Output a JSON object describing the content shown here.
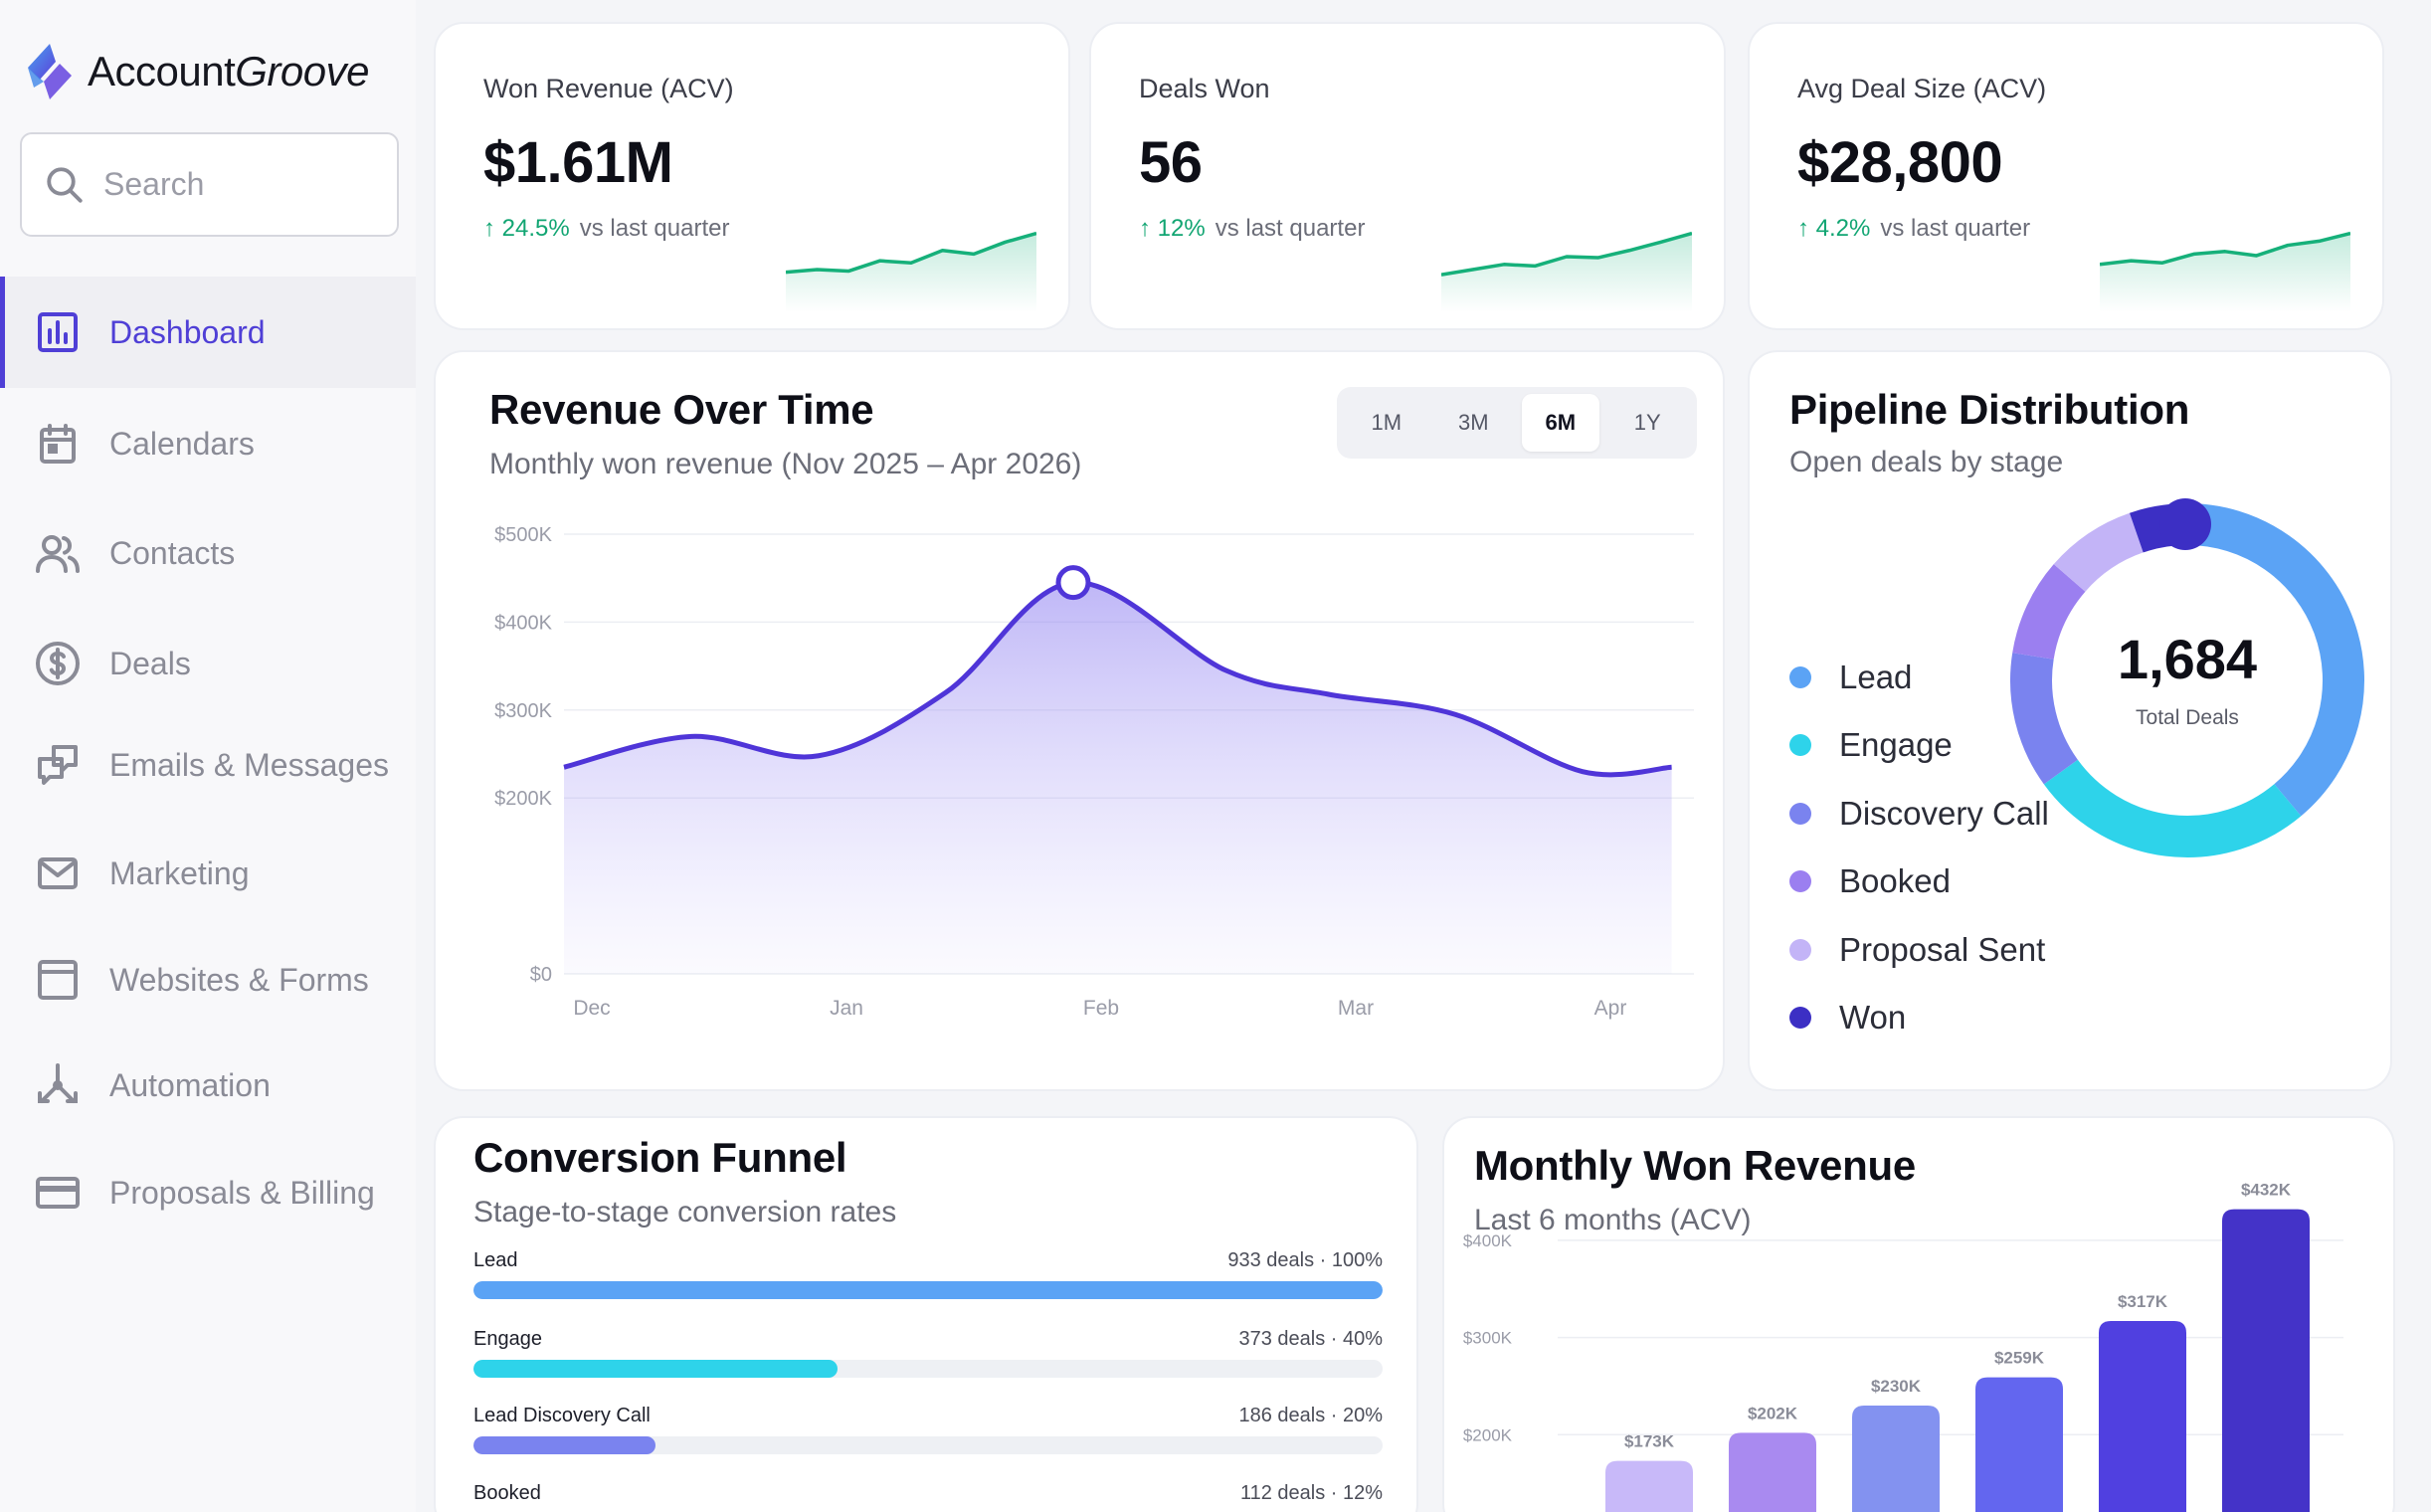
{
  "app": {
    "logo_text_a": "Account",
    "logo_text_b": "Groove",
    "search_placeholder": "Search"
  },
  "sidebar": {
    "items": [
      {
        "label": "Dashboard",
        "icon": "bar-chart-icon",
        "active": true
      },
      {
        "label": "Calendars",
        "icon": "calendar-icon"
      },
      {
        "label": "Contacts",
        "icon": "users-icon"
      },
      {
        "label": "Deals",
        "icon": "dollar-icon"
      },
      {
        "label": "Emails & Messages",
        "icon": "messages-icon"
      },
      {
        "label": "Marketing",
        "icon": "mail-icon"
      },
      {
        "label": "Websites & Forms",
        "icon": "browser-icon"
      },
      {
        "label": "Automation",
        "icon": "automation-icon"
      },
      {
        "label": "Proposals & Billing",
        "icon": "credit-card-icon"
      }
    ]
  },
  "kpis": [
    {
      "label": "Won Revenue (ACV)",
      "value": "$1.61M",
      "delta": "↑ 24.5%",
      "compare": "vs last quarter",
      "trend": [
        0.2,
        0.25,
        0.22,
        0.42,
        0.38,
        0.62,
        0.55,
        0.78,
        0.95
      ]
    },
    {
      "label": "Deals Won",
      "value": "56",
      "delta": "↑ 12%",
      "compare": "vs last quarter",
      "trend": [
        0.15,
        0.25,
        0.35,
        0.32,
        0.5,
        0.48,
        0.62,
        0.78,
        0.95
      ]
    },
    {
      "label": "Avg Deal Size (ACV)",
      "value": "$28,800",
      "delta": "↑ 4.2%",
      "compare": "vs last quarter",
      "trend": [
        0.35,
        0.42,
        0.38,
        0.55,
        0.6,
        0.52,
        0.72,
        0.8,
        0.95
      ]
    }
  ],
  "revenue": {
    "title": "Revenue Over Time",
    "subtitle": "Monthly won revenue (Nov 2025 – Apr 2026)",
    "ranges": [
      "1M",
      "3M",
      "6M",
      "1Y"
    ],
    "selected_range": "6M",
    "accent": "#4f35d8"
  },
  "pipeline": {
    "title": "Pipeline Distribution",
    "subtitle": "Open deals by stage",
    "total": "1,684",
    "total_label": "Total Deals",
    "stages": [
      {
        "name": "Lead",
        "color": "#5ba3f5"
      },
      {
        "name": "Engage",
        "color": "#2ed3ea"
      },
      {
        "name": "Discovery Call",
        "color": "#7a83ef"
      },
      {
        "name": "Booked",
        "color": "#9b7ff0"
      },
      {
        "name": "Proposal Sent",
        "color": "#c3b4f7"
      },
      {
        "name": "Won",
        "color": "#3c2fc4"
      }
    ]
  },
  "funnel": {
    "title": "Conversion Funnel",
    "subtitle": "Stage-to-stage conversion rates",
    "rows": [
      {
        "name": "Lead",
        "meta": "933 deals · 100%",
        "pct": 100,
        "color": "#5ba3f5"
      },
      {
        "name": "Engage",
        "meta": "373 deals · 40%",
        "pct": 40,
        "color": "#2ed3ea"
      },
      {
        "name": "Lead Discovery Call",
        "meta": "186 deals · 20%",
        "pct": 20,
        "color": "#7a83ef"
      },
      {
        "name": "Booked",
        "meta": "112 deals · 12%",
        "pct": 12,
        "color": "#9b7ff0"
      }
    ]
  },
  "chart_data": [
    {
      "type": "area",
      "title": "Revenue Over Time",
      "subtitle": "Monthly won revenue (Nov 2025 – Apr 2026)",
      "x": [
        "Dec",
        "Jan",
        "Feb",
        "Mar",
        "Apr"
      ],
      "yticks": [
        "$0",
        "$200K",
        "$300K",
        "$400K",
        "$500K"
      ],
      "ylim": [
        0,
        500000
      ],
      "points": [
        {
          "x": 0.0,
          "y": 235000
        },
        {
          "x": 0.5,
          "y": 270000
        },
        {
          "x": 1.0,
          "y": 248000
        },
        {
          "x": 1.5,
          "y": 320000
        },
        {
          "x": 2.0,
          "y": 445000
        },
        {
          "x": 2.6,
          "y": 345000
        },
        {
          "x": 3.0,
          "y": 318000
        },
        {
          "x": 3.5,
          "y": 295000
        },
        {
          "x": 4.0,
          "y": 230000
        },
        {
          "x": 4.35,
          "y": 235000
        }
      ],
      "highlight_index": 4,
      "grid": true
    },
    {
      "type": "pie",
      "title": "Pipeline Distribution",
      "categories": [
        "Lead",
        "Engage",
        "Discovery Call",
        "Booked",
        "Proposal Sent",
        "Won"
      ],
      "values": [
        655,
        440,
        210,
        150,
        140,
        89
      ],
      "total": 1684
    },
    {
      "type": "bar",
      "title": "Monthly Won Revenue",
      "subtitle": "Last 6 months (ACV)",
      "categories": [
        "",
        "",
        "",
        "",
        "",
        ""
      ],
      "values": [
        173,
        202,
        230,
        259,
        317,
        432
      ],
      "value_labels": [
        "$173K",
        "$202K",
        "$230K",
        "$259K",
        "$317K",
        "$432K"
      ],
      "colors": [
        "#c8b9f9",
        "#a98af0",
        "#8392f0",
        "#6366ef",
        "#5040e0",
        "#4433c8"
      ],
      "yticks": [
        "$200K",
        "$300K",
        "$400K"
      ],
      "ylim": [
        100,
        450
      ],
      "grid": true
    }
  ]
}
